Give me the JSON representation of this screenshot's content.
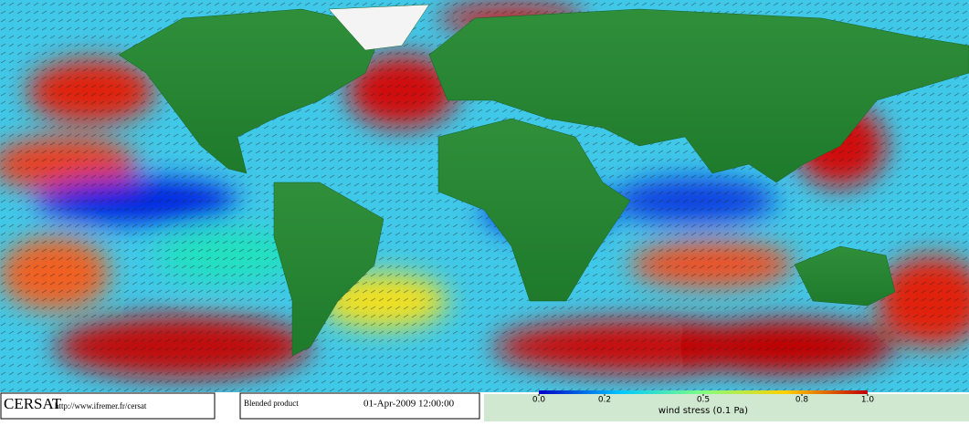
{
  "footer": {
    "logo": "CERSAT",
    "url": "http://www.ifremer.fr/cersat",
    "product": "Blended product",
    "date": "01-Apr-2009 12:00:00"
  },
  "colorbar": {
    "label": "wind stress (0.1 Pa)",
    "range": [
      0,
      1
    ],
    "ticks": [
      {
        "value": 0,
        "label": "0.0"
      },
      {
        "value": 0.2,
        "label": "0.2"
      },
      {
        "value": 0.5,
        "label": "0.5"
      },
      {
        "value": 0.8,
        "label": "0.8"
      },
      {
        "value": 1,
        "label": "1.0"
      }
    ]
  }
}
